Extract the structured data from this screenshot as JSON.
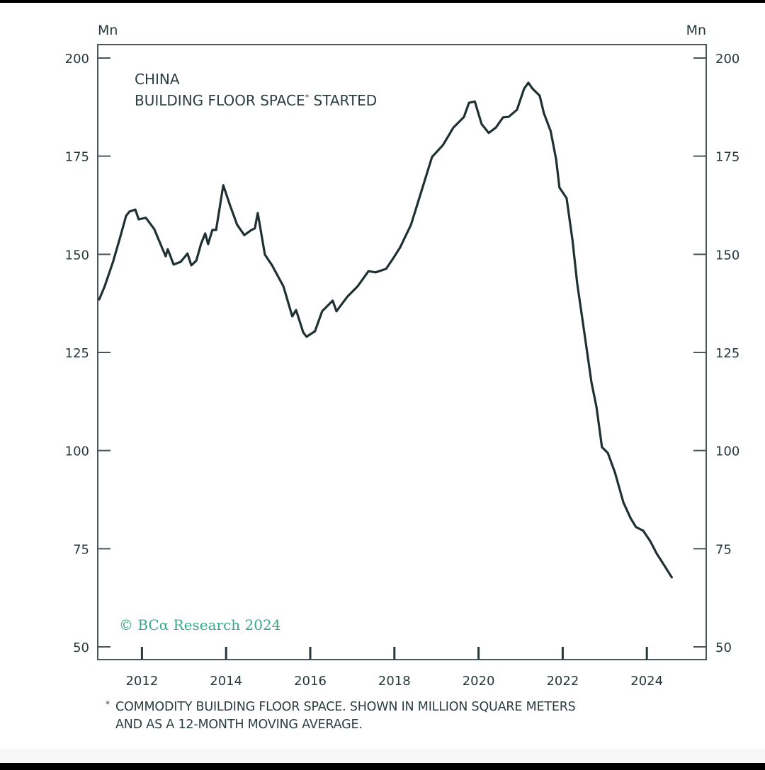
{
  "chart_data": {
    "type": "line",
    "title": "CHINA",
    "subtitle": "BUILDING FLOOR SPACE* STARTED",
    "title_asterisk": "*",
    "left_unit_label": "Mn",
    "right_unit_label": "Mn",
    "xlabel": "",
    "ylabel": "Mn",
    "ylim": [
      50,
      200
    ],
    "xlim": [
      2011,
      2025.45
    ],
    "y_ticks": [
      50,
      75,
      100,
      125,
      150,
      175,
      200
    ],
    "y_tick_labels": [
      "50",
      "75",
      "100",
      "125",
      "150",
      "175",
      "200"
    ],
    "x_ticks": [
      2012,
      2014,
      2016,
      2018,
      2020,
      2022,
      2024
    ],
    "x_tick_labels": [
      "2012",
      "2014",
      "2016",
      "2018",
      "2020",
      "2022",
      "2024"
    ],
    "grid": false,
    "legend": "none",
    "copyright": "© BCα Research 2024",
    "footnote_marker": "*",
    "footnote_lines": [
      "COMMODITY BUILDING FLOOR SPACE. SHOWN IN MILLION SQUARE METERS",
      "AND AS A 12-MONTH MOVING AVERAGE."
    ],
    "line_color": "#1f3033",
    "copyright_color": "#3aa88a",
    "series": [
      {
        "name": "Building floor space started (12M MA, Mn sq m)",
        "x": [
          2011.0,
          2011.13,
          2011.33,
          2011.5,
          2011.64,
          2011.72,
          2011.86,
          2011.94,
          2012.11,
          2012.31,
          2012.52,
          2012.58,
          2012.63,
          2012.77,
          2012.94,
          2013.1,
          2013.19,
          2013.31,
          2013.42,
          2013.52,
          2013.59,
          2013.69,
          2013.78,
          2013.95,
          2014.11,
          2014.28,
          2014.45,
          2014.62,
          2014.7,
          2014.77,
          2014.94,
          2015.11,
          2015.38,
          2015.59,
          2015.68,
          2015.85,
          2015.93,
          2016.13,
          2016.3,
          2016.55,
          2016.64,
          2016.89,
          2017.14,
          2017.4,
          2017.57,
          2017.82,
          2017.99,
          2018.15,
          2018.41,
          2018.66,
          2018.91,
          2019.17,
          2019.42,
          2019.67,
          2019.79,
          2019.93,
          2020.09,
          2020.26,
          2020.43,
          2020.6,
          2020.73,
          2020.93,
          2021.1,
          2021.2,
          2021.3,
          2021.47,
          2021.57,
          2021.73,
          2021.86,
          2021.94,
          2022.11,
          2022.25,
          2022.36,
          2022.53,
          2022.7,
          2022.82,
          2022.95,
          2023.09,
          2023.26,
          2023.46,
          2023.63,
          2023.76,
          2023.93,
          2024.1,
          2024.25,
          2024.44,
          2024.61
        ],
        "values": [
          138.5,
          141.8,
          148.1,
          154.4,
          159.8,
          160.9,
          161.4,
          158.9,
          159.3,
          156.4,
          151.0,
          149.5,
          151.3,
          147.4,
          148.1,
          150.2,
          147.2,
          148.4,
          152.6,
          155.3,
          152.6,
          156.2,
          156.2,
          167.6,
          162.5,
          157.5,
          154.9,
          156.2,
          156.6,
          160.5,
          149.9,
          147.2,
          141.8,
          134.2,
          135.8,
          130.1,
          129.0,
          130.4,
          135.5,
          138.2,
          135.5,
          139.1,
          141.8,
          145.7,
          145.4,
          146.3,
          149.0,
          151.7,
          157.5,
          166.1,
          174.8,
          177.8,
          182.3,
          185.0,
          188.6,
          188.9,
          183.2,
          180.9,
          182.3,
          184.9,
          185.0,
          186.8,
          192.2,
          193.7,
          192.2,
          190.4,
          185.9,
          181.4,
          174.2,
          167.0,
          164.3,
          153.5,
          142.7,
          130.1,
          117.4,
          111.1,
          100.9,
          99.4,
          94.4,
          86.8,
          82.8,
          80.5,
          79.6,
          76.9,
          73.8,
          70.6,
          67.7
        ]
      }
    ]
  }
}
